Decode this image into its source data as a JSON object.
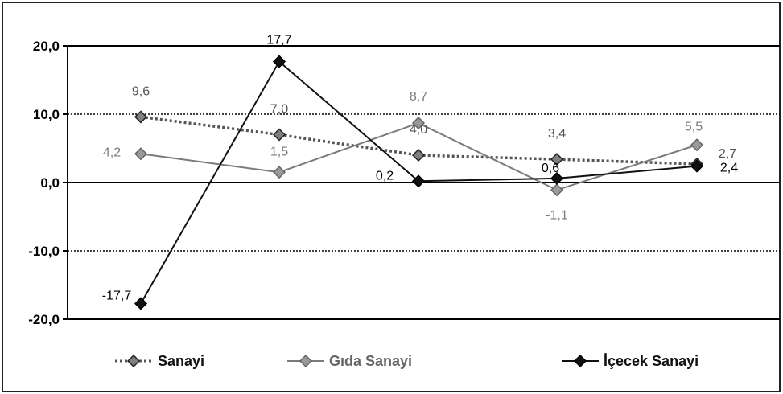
{
  "chart_data": {
    "type": "line",
    "title": "",
    "xlabel": "",
    "ylabel": "",
    "categories": [
      "",
      "",
      "",
      "",
      ""
    ],
    "ylim": [
      -20,
      20
    ],
    "yticks": [
      20,
      10,
      0,
      -10,
      -20
    ],
    "ytick_labels": [
      "20,0",
      "10,0",
      "0,0",
      "-10,0",
      "-20,0"
    ],
    "grid": "dotted at 10 and -10, solid at 0",
    "legend_position": "bottom",
    "series": [
      {
        "name": "Sanayi",
        "values": [
          9.6,
          7.0,
          4.0,
          3.4,
          2.7
        ],
        "labels": [
          "9,6",
          "7,0",
          "4,0",
          "3,4",
          "2,7"
        ],
        "color": "#555555",
        "line_style": "dotted"
      },
      {
        "name": "Gıda Sanayi",
        "values": [
          4.2,
          1.5,
          8.7,
          -1.1,
          5.5
        ],
        "labels": [
          "4,2",
          "1,5",
          "8,7",
          "-1,1",
          "5,5"
        ],
        "color": "#7a7a7a",
        "line_style": "solid"
      },
      {
        "name": "İçecek Sanayi",
        "values": [
          -17.7,
          17.7,
          0.2,
          0.6,
          2.4
        ],
        "labels": [
          "-17,7",
          "17,7",
          "0,2",
          "0,6",
          "2,4"
        ],
        "color": "#111111",
        "line_style": "solid"
      }
    ]
  }
}
